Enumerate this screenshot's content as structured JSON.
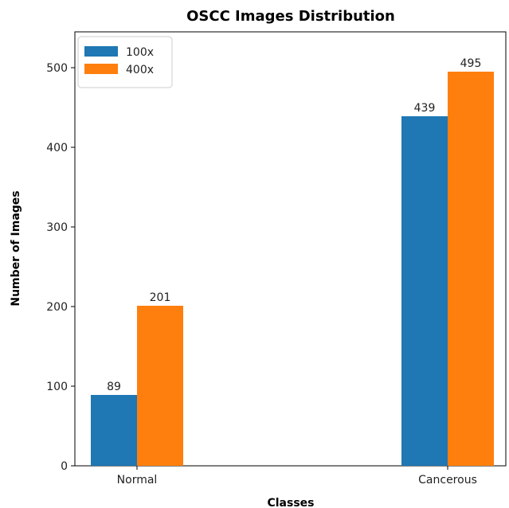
{
  "chart_data": {
    "type": "bar",
    "title": "OSCC Images Distribution",
    "xlabel": "Classes",
    "ylabel": "Number of Images",
    "categories": [
      "Normal",
      "Cancerous"
    ],
    "series": [
      {
        "name": "100x",
        "values": [
          89,
          439
        ],
        "color": "#1f77b4"
      },
      {
        "name": "400x",
        "values": [
          201,
          495
        ],
        "color": "#ff7f0e"
      }
    ],
    "ylim": [
      0,
      545
    ],
    "yticks": [
      0,
      100,
      200,
      300,
      400,
      500
    ],
    "legend_position": "top-left",
    "grid": false
  }
}
